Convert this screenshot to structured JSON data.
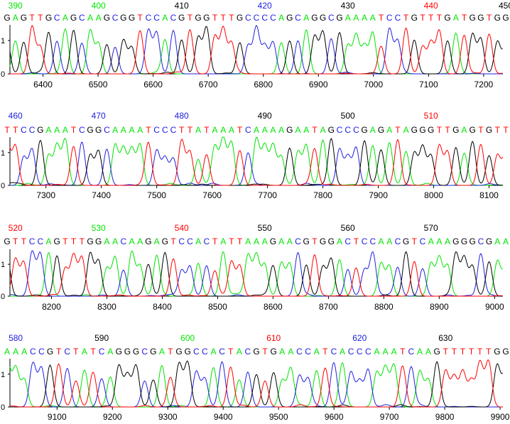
{
  "chart_data": {
    "type": "line",
    "colors": {
      "A": "#00e400",
      "C": "#2020e0",
      "G": "#000000",
      "T": "#ff0000"
    },
    "panels": [
      {
        "sequence": "GAGTTGCAGCAAGCGGTCCACGTGGTTTGCCCCAGCAGGCGAAAATCCTGTTTGATGGTGG",
        "positions": [
          {
            "label": "390",
            "color": "#00e400"
          },
          {
            "label": "400",
            "color": "#00e400"
          },
          {
            "label": "410",
            "color": "#000000"
          },
          {
            "label": "420",
            "color": "#2020e0"
          },
          {
            "label": "430",
            "color": "#000000"
          },
          {
            "label": "440",
            "color": "#ff0000"
          },
          {
            "label": "450",
            "color": "#000000"
          }
        ],
        "xlim": [
          6340,
          7235
        ],
        "xticks": [
          "6400",
          "6500",
          "6600",
          "6700",
          "6800",
          "6900",
          "7000",
          "7100",
          "7200"
        ],
        "yticks": [
          "0",
          "1"
        ]
      },
      {
        "sequence": "TTCCGAAATCGGCAAAATCCCTTATAAATCAAAAGAATAGCCCGAGATAGGGTTGAGTGTT",
        "positions": [
          {
            "label": "460",
            "color": "#2020e0"
          },
          {
            "label": "470",
            "color": "#2020e0"
          },
          {
            "label": "480",
            "color": "#2020e0"
          },
          {
            "label": "490",
            "color": "#000000"
          },
          {
            "label": "500",
            "color": "#000000"
          },
          {
            "label": "510",
            "color": "#ff0000"
          }
        ],
        "xlim": [
          7235,
          8125
        ],
        "xticks": [
          "7300",
          "7400",
          "7500",
          "7600",
          "7700",
          "7800",
          "7900",
          "8000",
          "8100"
        ],
        "yticks": [
          "0",
          "1"
        ]
      },
      {
        "sequence": "GTTCCAGTTTGGAACAAGAGTCCACTATTAAAGAACGTGGACTCCAACGTCAAAGGGCGAA",
        "positions": [
          {
            "label": "520",
            "color": "#ff0000"
          },
          {
            "label": "530",
            "color": "#00e400"
          },
          {
            "label": "540",
            "color": "#ff0000"
          },
          {
            "label": "550",
            "color": "#000000"
          },
          {
            "label": "560",
            "color": "#000000"
          },
          {
            "label": "570",
            "color": "#000000"
          }
        ],
        "xlim": [
          8125,
          9015
        ],
        "xticks": [
          "8200",
          "8300",
          "8400",
          "8500",
          "8600",
          "8700",
          "8800",
          "8900",
          "9000"
        ],
        "yticks": [
          "0",
          "1"
        ]
      },
      {
        "sequence": "AAACCGTCTATCAGGGCGATGGCCACTACGTGAACCATCACCCAAATCAAGTTTTTTGG",
        "positions": [
          {
            "label": "580",
            "color": "#2020e0"
          },
          {
            "label": "590",
            "color": "#000000"
          },
          {
            "label": "600",
            "color": "#00e400"
          },
          {
            "label": "610",
            "color": "#ff0000"
          },
          {
            "label": "620",
            "color": "#2020e0"
          },
          {
            "label": "630",
            "color": "#000000"
          }
        ],
        "xlim": [
          9015,
          9905
        ],
        "xticks": [
          "9100",
          "9200",
          "9300",
          "9400",
          "9500",
          "9600",
          "9700",
          "9800",
          "9900"
        ],
        "yticks": [
          "0",
          "1"
        ]
      }
    ]
  }
}
